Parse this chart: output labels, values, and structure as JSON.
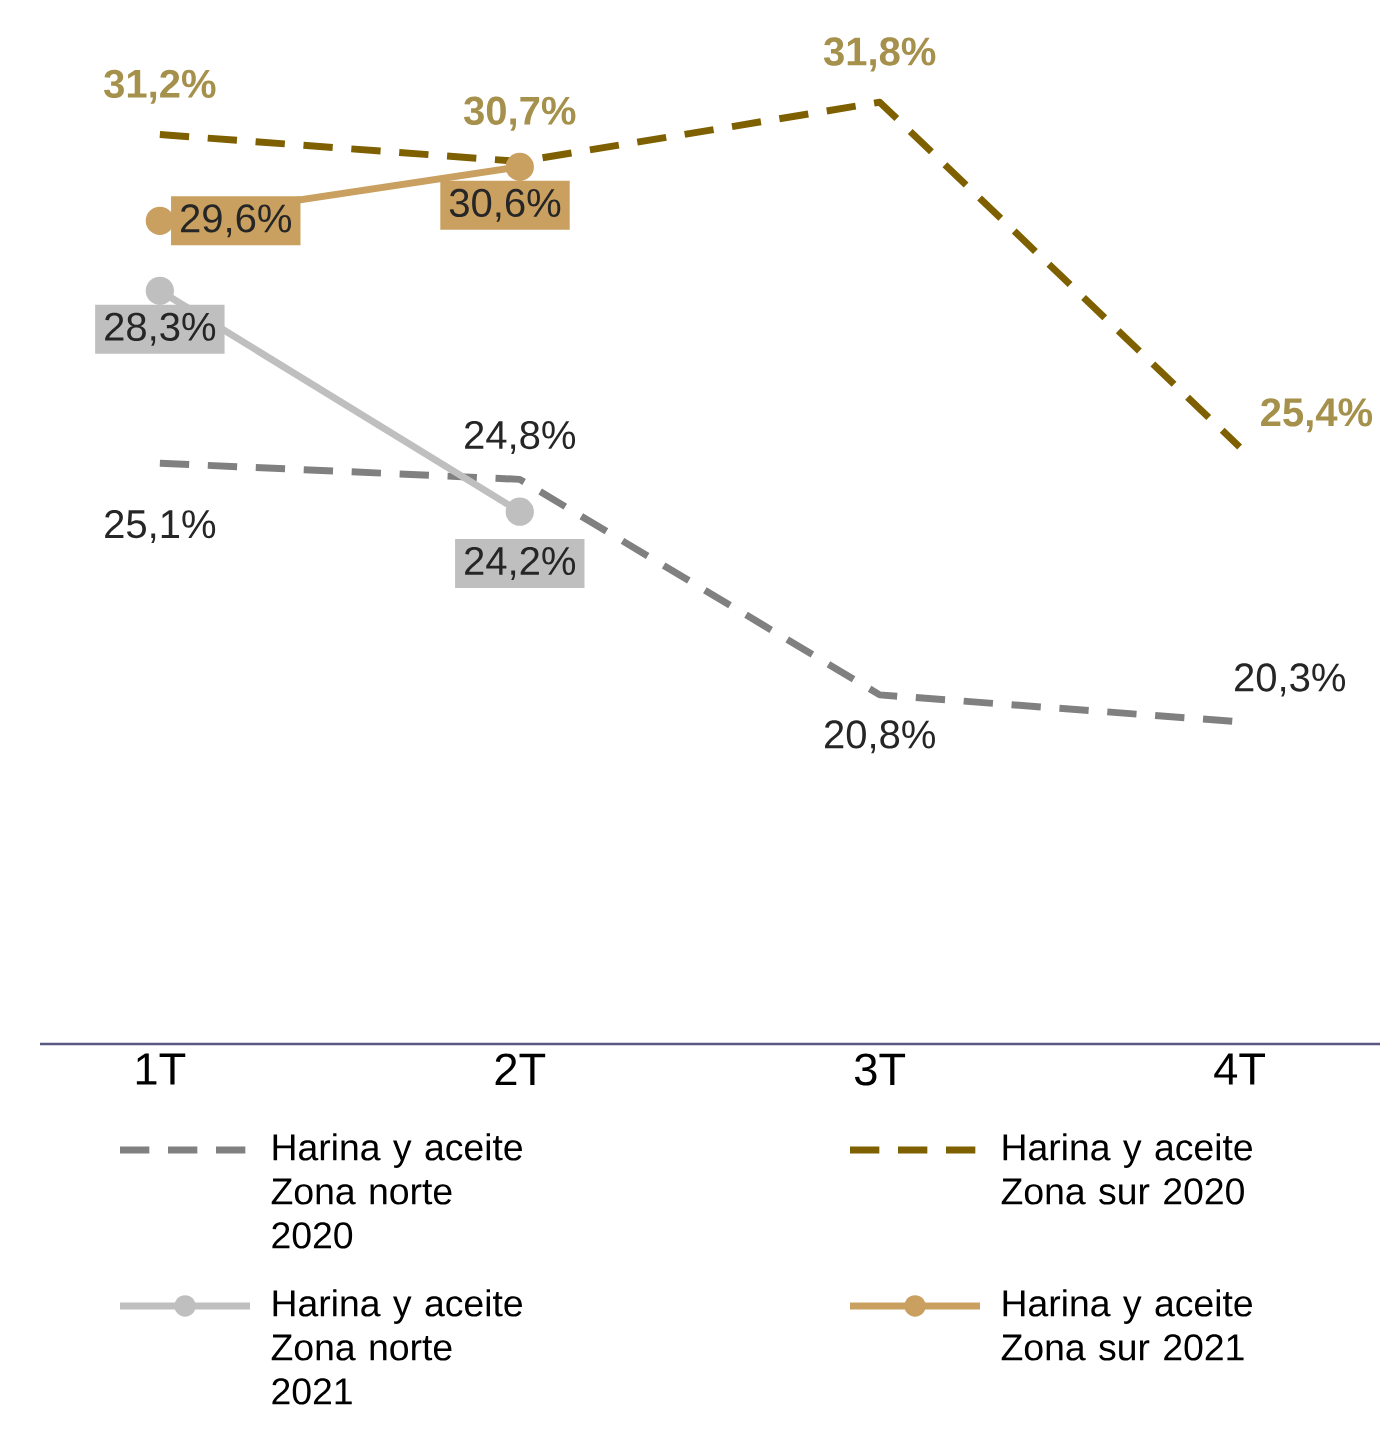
{
  "chart_data": {
    "type": "line",
    "categories": [
      "1T",
      "2T",
      "3T",
      "4T"
    ],
    "tick_labels": "x",
    "grid": false,
    "legend": "bottom",
    "series": [
      {
        "name": "Harina y aceite Zona norte 2020",
        "color": "#808080",
        "line_style": "dashed",
        "marker": "none",
        "values": [
          25.1,
          24.8,
          20.8,
          20.3
        ],
        "value_labels": [
          "25,1%",
          "24,8%",
          "20,8%",
          "20,3%"
        ]
      },
      {
        "name": "Harina y aceite Zona sur 2020",
        "color": "#7f6000",
        "line_style": "dashed",
        "marker": "none",
        "values": [
          31.2,
          30.7,
          31.8,
          25.4
        ],
        "value_labels": [
          "31,2%",
          "30,7%",
          "31,8%",
          "25,4%"
        ]
      },
      {
        "name": "Harina y aceite Zona norte 2021",
        "color": "#bfbfbf",
        "line_style": "solid",
        "marker": "circle",
        "values": [
          28.3,
          24.2,
          null,
          null
        ],
        "value_labels": [
          "28,3%",
          "24,2%",
          null,
          null
        ]
      },
      {
        "name": "Harina y aceite Zona sur 2021",
        "color": "#c9a060",
        "line_style": "solid",
        "marker": "circle",
        "values": [
          29.6,
          30.6,
          null,
          null
        ],
        "value_labels": [
          "29,6%",
          "30,6%",
          null,
          null
        ]
      }
    ]
  }
}
